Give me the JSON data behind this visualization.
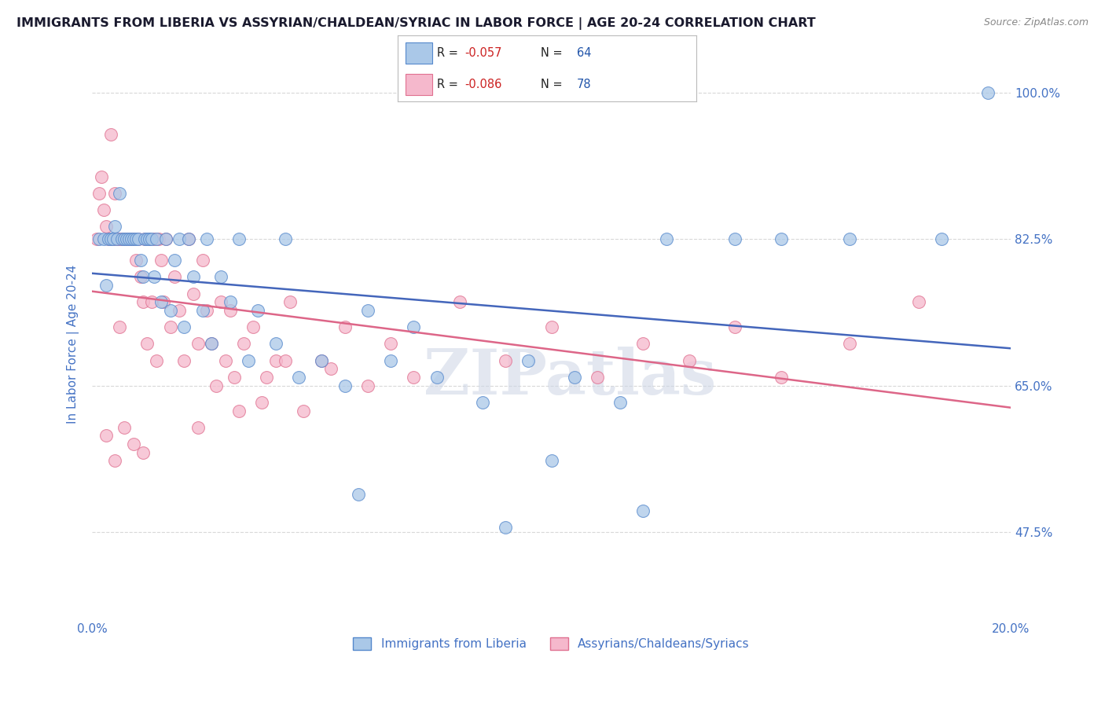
{
  "title": "IMMIGRANTS FROM LIBERIA VS ASSYRIAN/CHALDEAN/SYRIAC IN LABOR FORCE | AGE 20-24 CORRELATION CHART",
  "source": "Source: ZipAtlas.com",
  "ylabel": "In Labor Force | Age 20-24",
  "xlim": [
    0.0,
    20.0
  ],
  "ylim": [
    37.0,
    103.0
  ],
  "yticks": [
    47.5,
    65.0,
    82.5,
    100.0
  ],
  "yticklabels": [
    "47.5%",
    "65.0%",
    "82.5%",
    "100.0%"
  ],
  "watermark": "ZIPatlas",
  "blue_color": "#aac8e8",
  "pink_color": "#f5b8cc",
  "blue_edge_color": "#5588cc",
  "pink_edge_color": "#e07090",
  "blue_line_color": "#4466bb",
  "pink_line_color": "#dd6688",
  "R_blue": -0.057,
  "N_blue": 64,
  "R_pink": -0.086,
  "N_pink": 78,
  "blue_scatter_x": [
    0.15,
    0.25,
    0.3,
    0.35,
    0.4,
    0.45,
    0.5,
    0.55,
    0.6,
    0.65,
    0.7,
    0.75,
    0.8,
    0.85,
    0.9,
    0.95,
    1.0,
    1.05,
    1.1,
    1.15,
    1.2,
    1.25,
    1.3,
    1.35,
    1.4,
    1.5,
    1.6,
    1.7,
    1.8,
    1.9,
    2.0,
    2.1,
    2.2,
    2.4,
    2.5,
    2.6,
    2.8,
    3.0,
    3.2,
    3.4,
    3.6,
    4.0,
    4.2,
    4.5,
    5.0,
    5.5,
    6.0,
    6.5,
    7.0,
    7.5,
    8.5,
    9.5,
    10.0,
    10.5,
    11.5,
    12.5,
    14.0,
    15.0,
    16.5,
    18.5,
    12.0,
    9.0,
    5.8,
    19.5
  ],
  "blue_scatter_y": [
    82.5,
    82.5,
    77.0,
    82.5,
    82.5,
    82.5,
    84.0,
    82.5,
    88.0,
    82.5,
    82.5,
    82.5,
    82.5,
    82.5,
    82.5,
    82.5,
    82.5,
    80.0,
    78.0,
    82.5,
    82.5,
    82.5,
    82.5,
    78.0,
    82.5,
    75.0,
    82.5,
    74.0,
    80.0,
    82.5,
    72.0,
    82.5,
    78.0,
    74.0,
    82.5,
    70.0,
    78.0,
    75.0,
    82.5,
    68.0,
    74.0,
    70.0,
    82.5,
    66.0,
    68.0,
    65.0,
    74.0,
    68.0,
    72.0,
    66.0,
    63.0,
    68.0,
    56.0,
    66.0,
    63.0,
    82.5,
    82.5,
    82.5,
    82.5,
    82.5,
    50.0,
    48.0,
    52.0,
    100.0
  ],
  "pink_scatter_x": [
    0.1,
    0.15,
    0.2,
    0.25,
    0.3,
    0.35,
    0.4,
    0.45,
    0.5,
    0.55,
    0.6,
    0.65,
    0.7,
    0.75,
    0.8,
    0.85,
    0.9,
    0.95,
    1.0,
    1.05,
    1.1,
    1.15,
    1.2,
    1.25,
    1.3,
    1.35,
    1.4,
    1.45,
    1.5,
    1.55,
    1.6,
    1.7,
    1.8,
    1.9,
    2.0,
    2.1,
    2.2,
    2.3,
    2.4,
    2.5,
    2.6,
    2.7,
    2.8,
    2.9,
    3.0,
    3.1,
    3.2,
    3.3,
    3.5,
    3.8,
    4.0,
    4.3,
    4.6,
    5.0,
    5.5,
    6.0,
    6.5,
    7.0,
    8.0,
    9.0,
    10.0,
    11.0,
    12.0,
    13.0,
    14.0,
    15.0,
    16.5,
    18.0,
    5.2,
    4.2,
    3.7,
    2.3,
    0.6,
    0.7,
    1.1,
    0.9,
    0.5,
    0.3
  ],
  "pink_scatter_y": [
    82.5,
    88.0,
    90.0,
    86.0,
    84.0,
    82.5,
    95.0,
    82.5,
    88.0,
    82.5,
    82.5,
    82.5,
    82.5,
    82.5,
    82.5,
    82.5,
    82.5,
    80.0,
    82.5,
    78.0,
    75.0,
    82.5,
    70.0,
    82.5,
    75.0,
    82.5,
    68.0,
    82.5,
    80.0,
    75.0,
    82.5,
    72.0,
    78.0,
    74.0,
    68.0,
    82.5,
    76.0,
    70.0,
    80.0,
    74.0,
    70.0,
    65.0,
    75.0,
    68.0,
    74.0,
    66.0,
    62.0,
    70.0,
    72.0,
    66.0,
    68.0,
    75.0,
    62.0,
    68.0,
    72.0,
    65.0,
    70.0,
    66.0,
    75.0,
    68.0,
    72.0,
    66.0,
    70.0,
    68.0,
    72.0,
    66.0,
    70.0,
    75.0,
    67.0,
    68.0,
    63.0,
    60.0,
    72.0,
    60.0,
    57.0,
    58.0,
    56.0,
    59.0
  ],
  "background_color": "#ffffff",
  "grid_color": "#d8d8d8",
  "title_color": "#1a1a2e",
  "axis_label_color": "#4472c4",
  "tick_color": "#4472c4",
  "legend_blue_text": "R = -0.057  N = 64",
  "legend_pink_text": "R = -0.086  N = 78",
  "legend_bottom_blue": "Immigrants from Liberia",
  "legend_bottom_pink": "Assyrians/Chaldeans/Syriacs",
  "r_value_color": "#cc2222",
  "n_value_color": "#2255aa"
}
